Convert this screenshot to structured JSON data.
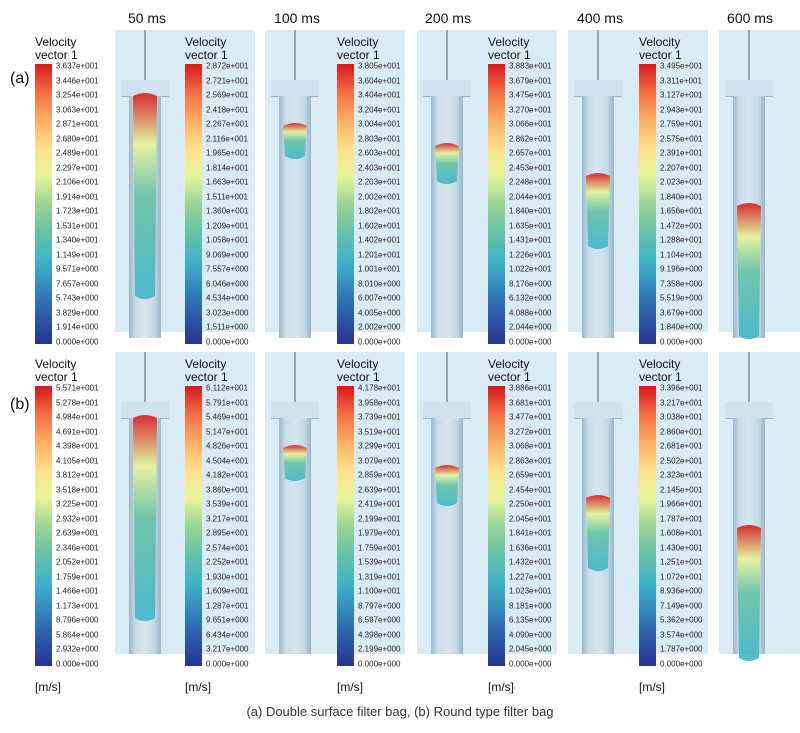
{
  "time_labels": [
    "50 ms",
    "100 ms",
    "200 ms",
    "400 ms",
    "600 ms"
  ],
  "row_labels": [
    "(a)",
    "(b)"
  ],
  "legend_title_line1": "Velocity",
  "legend_title_line2": "vector 1",
  "units": "[m/s]",
  "caption": "(a) Double surface filter bag, (b) Round type filter bag",
  "colormap": [
    "#d7191c",
    "#f46d43",
    "#fdae61",
    "#fee08b",
    "#e6f598",
    "#99d594",
    "#66c2a5",
    "#3fb5c8",
    "#3288bd",
    "#2c5aa8",
    "#253494"
  ],
  "rows": [
    {
      "panels": [
        {
          "ticks": [
            "3.637e+001",
            "3.446e+001",
            "3.254e+001",
            "3.063e+001",
            "2.871e+001",
            "2.680e+001",
            "2.489e+001",
            "2.297e+001",
            "2.106e+001",
            "1.914e+001",
            "1.723e+001",
            "1.531e+001",
            "1.340e+001",
            "1.149e+001",
            "9.571e+000",
            "7.657e+000",
            "5.743e+000",
            "3.829e+000",
            "1.914e+000",
            "0.000e+000"
          ]
        },
        {
          "ticks": [
            "2.872e+001",
            "2.721e+001",
            "2.569e+001",
            "2.418e+001",
            "2.267e+001",
            "2.116e+001",
            "1.965e+001",
            "1.814e+001",
            "1.663e+001",
            "1.511e+001",
            "1.360e+001",
            "1.209e+001",
            "1.058e+001",
            "9.069e+000",
            "7.557e+000",
            "6.046e+000",
            "4.534e+000",
            "3.023e+000",
            "1.511e+000",
            "0.000e+000"
          ]
        },
        {
          "ticks": [
            "3.805e+001",
            "3.604e+001",
            "3.404e+001",
            "3.204e+001",
            "3.004e+001",
            "2.803e+001",
            "2.603e+001",
            "2.403e+001",
            "2.203e+001",
            "2.002e+001",
            "1.802e+001",
            "1.602e+001",
            "1.402e+001",
            "1.201e+001",
            "1.001e+001",
            "8.010e+000",
            "6.007e+000",
            "4.005e+000",
            "2.002e+000",
            "0.000e+000"
          ]
        },
        {
          "ticks": [
            "3.883e+001",
            "3.679e+001",
            "3.475e+001",
            "3.270e+001",
            "3.066e+001",
            "2.862e+001",
            "2.657e+001",
            "2.453e+001",
            "2.248e+001",
            "2.044e+001",
            "1.840e+001",
            "1.635e+001",
            "1.431e+001",
            "1.226e+001",
            "1.022e+001",
            "8.176e+000",
            "6.132e+000",
            "4.088e+000",
            "2.044e+000",
            "0.000e+000"
          ]
        },
        {
          "ticks": [
            "3.495e+001",
            "3.311e+001",
            "3.127e+001",
            "2.943e+001",
            "2.759e+001",
            "2.575e+001",
            "2.391e+001",
            "2.207e+001",
            "2.023e+001",
            "1.840e+001",
            "1.656e+001",
            "1.472e+001",
            "1.288e+001",
            "1.104e+001",
            "9.196e+000",
            "7.358e+000",
            "5.519e+000",
            "3.679e+000",
            "1.840e+000",
            "0.000e+000"
          ]
        }
      ]
    },
    {
      "panels": [
        {
          "ticks": [
            "5.571e+001",
            "5.278e+001",
            "4.984e+001",
            "4.691e+001",
            "4.398e+001",
            "4.105e+001",
            "3.812e+001",
            "3.518e+001",
            "3.225e+001",
            "2.932e+001",
            "2.639e+001",
            "2.346e+001",
            "2.052e+001",
            "1.759e+001",
            "1.466e+001",
            "1.173e+001",
            "8.796e+000",
            "5.864e+000",
            "2.932e+000",
            "0.000e+000"
          ]
        },
        {
          "ticks": [
            "6.112e+001",
            "5.791e+001",
            "5.469e+001",
            "5.147e+001",
            "4.826e+001",
            "4.504e+001",
            "4.182e+001",
            "3.860e+001",
            "3.539e+001",
            "3.217e+001",
            "2.895e+001",
            "2.574e+001",
            "2.252e+001",
            "1.930e+001",
            "1.609e+001",
            "1.287e+001",
            "9.651e+000",
            "6.434e+000",
            "3.217e+000",
            "0.000e+000"
          ]
        },
        {
          "ticks": [
            "4.178e+001",
            "3.958e+001",
            "3.739e+001",
            "3.519e+001",
            "3.299e+001",
            "3.079e+001",
            "2.859e+001",
            "2.639e+001",
            "2.419e+001",
            "2.199e+001",
            "1.979e+001",
            "1.759e+001",
            "1.539e+001",
            "1.319e+001",
            "1.100e+001",
            "8.797e+000",
            "6.597e+000",
            "4.398e+000",
            "2.199e+000",
            "0.000e+000"
          ]
        },
        {
          "ticks": [
            "3.886e+001",
            "3.681e+001",
            "3.477e+001",
            "3.272e+001",
            "3.068e+001",
            "2.863e+001",
            "2.659e+001",
            "2.454e+001",
            "2.250e+001",
            "2.045e+001",
            "1.841e+001",
            "1.636e+001",
            "1.432e+001",
            "1.227e+001",
            "1.023e+001",
            "8.181e+000",
            "6.135e+000",
            "4.090e+000",
            "2.045e+000",
            "0.000e+000"
          ]
        },
        {
          "ticks": [
            "3.396e+001",
            "3.217e+001",
            "3.038e+001",
            "2.860e+001",
            "2.681e+001",
            "2.502e+001",
            "2.323e+001",
            "2.145e+001",
            "1.966e+001",
            "1.787e+001",
            "1.608e+001",
            "1.430e+001",
            "1.251e+001",
            "1.072e+001",
            "8.936e+000",
            "7.149e+000",
            "5.362e+000",
            "3.574e+000",
            "1.787e+000",
            "0.000e+000"
          ]
        }
      ]
    }
  ]
}
